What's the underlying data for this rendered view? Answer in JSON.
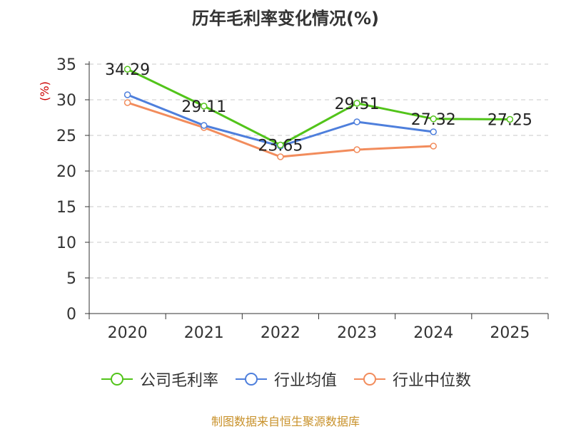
{
  "chart_data": {
    "type": "line",
    "title": "历年毛利率变化情况(%)",
    "ylabel": "(%)",
    "xlabel": "",
    "categories": [
      "2020",
      "2021",
      "2022",
      "2023",
      "2024",
      "2025"
    ],
    "ylim": [
      0,
      35
    ],
    "yticks": [
      0,
      5,
      10,
      15,
      20,
      25,
      30,
      35
    ],
    "grid": true,
    "legend_position": "bottom",
    "series": [
      {
        "name": "公司毛利率",
        "color": "#52c41a",
        "values": [
          34.29,
          29.11,
          23.65,
          29.51,
          27.32,
          27.25
        ],
        "show_labels": true
      },
      {
        "name": "行业均值",
        "color": "#4e7fdc",
        "values": [
          30.7,
          26.4,
          23.5,
          26.9,
          25.5,
          null
        ],
        "show_labels": false
      },
      {
        "name": "行业中位数",
        "color": "#f28c5c",
        "values": [
          29.6,
          26.1,
          22.0,
          23.0,
          23.5,
          null
        ],
        "show_labels": false
      }
    ]
  },
  "footer": {
    "source": "制图数据来自恒生聚源数据库"
  }
}
